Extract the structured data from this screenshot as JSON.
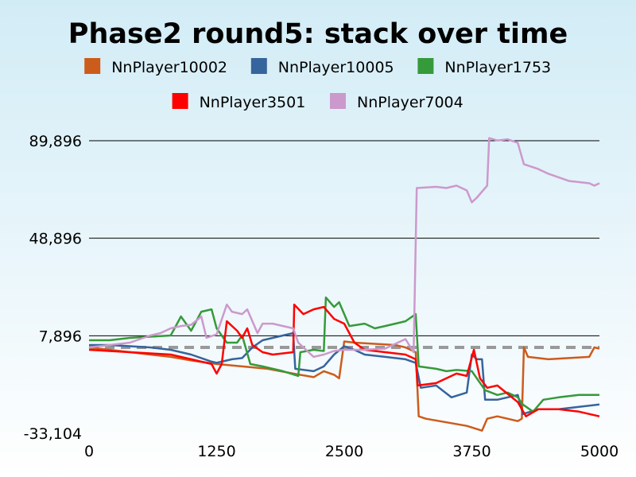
{
  "chart_data": {
    "type": "line",
    "title": "Phase2 round5: stack over time",
    "xlabel": "",
    "ylabel": "",
    "xlim": [
      0,
      5000
    ],
    "ylim": [
      -33104,
      89896
    ],
    "x_ticks": [
      0,
      1250,
      2500,
      3750,
      5000
    ],
    "x_tick_labels": [
      "0",
      "1250",
      "2500",
      "3750",
      "5000"
    ],
    "y_ticks": [
      -33104,
      7896,
      48896,
      89896
    ],
    "y_tick_labels": [
      "-33,104",
      "7,896",
      "48,896",
      "89,896"
    ],
    "grid": "horizontal",
    "legend_position": "top",
    "reference_line": {
      "y": 3000,
      "style": "dashed",
      "color": "#999999"
    },
    "series": [
      {
        "name": "NnPlayer10002",
        "color": "#cc5c1c",
        "points": [
          [
            0,
            3000
          ],
          [
            200,
            2000
          ],
          [
            400,
            1000
          ],
          [
            600,
            0
          ],
          [
            800,
            -1000
          ],
          [
            1000,
            -2500
          ],
          [
            1250,
            -4000
          ],
          [
            1500,
            -5000
          ],
          [
            1750,
            -6000
          ],
          [
            2000,
            -8000
          ],
          [
            2200,
            -9500
          ],
          [
            2300,
            -7000
          ],
          [
            2400,
            -8500
          ],
          [
            2450,
            -10000
          ],
          [
            2500,
            5500
          ],
          [
            2600,
            5000
          ],
          [
            2800,
            4500
          ],
          [
            3000,
            4000
          ],
          [
            3100,
            3000
          ],
          [
            3200,
            1000
          ],
          [
            3230,
            -26000
          ],
          [
            3300,
            -27000
          ],
          [
            3500,
            -28500
          ],
          [
            3700,
            -30000
          ],
          [
            3850,
            -32000
          ],
          [
            3900,
            -27000
          ],
          [
            4000,
            -26000
          ],
          [
            4200,
            -28000
          ],
          [
            4240,
            -27000
          ],
          [
            4260,
            3000
          ],
          [
            4300,
            -1000
          ],
          [
            4500,
            -2000
          ],
          [
            4700,
            -1500
          ],
          [
            4900,
            -1000
          ],
          [
            4950,
            3000
          ],
          [
            5000,
            2500
          ]
        ]
      },
      {
        "name": "NnPlayer10005",
        "color": "#36649c",
        "points": [
          [
            0,
            4000
          ],
          [
            200,
            4000
          ],
          [
            400,
            3500
          ],
          [
            600,
            3000
          ],
          [
            800,
            2000
          ],
          [
            1000,
            0
          ],
          [
            1200,
            -3000
          ],
          [
            1250,
            -3500
          ],
          [
            1400,
            -2000
          ],
          [
            1500,
            -1500
          ],
          [
            1600,
            3000
          ],
          [
            1700,
            6000
          ],
          [
            1800,
            7000
          ],
          [
            2000,
            9000
          ],
          [
            2020,
            -6000
          ],
          [
            2200,
            -7000
          ],
          [
            2300,
            -5000
          ],
          [
            2400,
            0
          ],
          [
            2500,
            3500
          ],
          [
            2600,
            2000
          ],
          [
            2700,
            0
          ],
          [
            2900,
            -1000
          ],
          [
            3100,
            -2000
          ],
          [
            3200,
            -3500
          ],
          [
            3250,
            -14000
          ],
          [
            3400,
            -13000
          ],
          [
            3550,
            -18000
          ],
          [
            3700,
            -16000
          ],
          [
            3750,
            0
          ],
          [
            3800,
            -2000
          ],
          [
            3850,
            -2000
          ],
          [
            3880,
            -19000
          ],
          [
            4000,
            -19000
          ],
          [
            4200,
            -17000
          ],
          [
            4250,
            -25000
          ],
          [
            4400,
            -23000
          ],
          [
            4600,
            -23000
          ],
          [
            4800,
            -22000
          ],
          [
            5000,
            -21000
          ]
        ]
      },
      {
        "name": "NnPlayer1753",
        "color": "#359a3a",
        "points": [
          [
            0,
            6000
          ],
          [
            200,
            6000
          ],
          [
            400,
            7000
          ],
          [
            600,
            7500
          ],
          [
            800,
            8000
          ],
          [
            900,
            16000
          ],
          [
            1000,
            10000
          ],
          [
            1100,
            18000
          ],
          [
            1200,
            19000
          ],
          [
            1250,
            11000
          ],
          [
            1350,
            5000
          ],
          [
            1450,
            5000
          ],
          [
            1500,
            8000
          ],
          [
            1580,
            -4000
          ],
          [
            1700,
            -5000
          ],
          [
            1900,
            -7000
          ],
          [
            2050,
            -9000
          ],
          [
            2070,
            1000
          ],
          [
            2200,
            2000
          ],
          [
            2300,
            1500
          ],
          [
            2320,
            24000
          ],
          [
            2400,
            20000
          ],
          [
            2450,
            22000
          ],
          [
            2500,
            17000
          ],
          [
            2550,
            12000
          ],
          [
            2700,
            13000
          ],
          [
            2800,
            11000
          ],
          [
            2900,
            12000
          ],
          [
            3000,
            13000
          ],
          [
            3100,
            14000
          ],
          [
            3200,
            17000
          ],
          [
            3230,
            -5000
          ],
          [
            3400,
            -6000
          ],
          [
            3500,
            -7000
          ],
          [
            3600,
            -6500
          ],
          [
            3750,
            -7000
          ],
          [
            3880,
            -15000
          ],
          [
            4000,
            -17000
          ],
          [
            4100,
            -16000
          ],
          [
            4200,
            -18000
          ],
          [
            4250,
            -21000
          ],
          [
            4350,
            -24000
          ],
          [
            4450,
            -19000
          ],
          [
            4600,
            -18000
          ],
          [
            4800,
            -17000
          ],
          [
            5000,
            -17000
          ]
        ]
      },
      {
        "name": "NnPlayer3501",
        "color": "#ff0000",
        "points": [
          [
            0,
            2000
          ],
          [
            200,
            1500
          ],
          [
            400,
            1000
          ],
          [
            600,
            500
          ],
          [
            800,
            0
          ],
          [
            1000,
            -2000
          ],
          [
            1200,
            -4000
          ],
          [
            1250,
            -8000
          ],
          [
            1300,
            -4000
          ],
          [
            1350,
            14000
          ],
          [
            1450,
            10000
          ],
          [
            1500,
            7000
          ],
          [
            1550,
            11000
          ],
          [
            1600,
            4000
          ],
          [
            1700,
            1000
          ],
          [
            1800,
            0
          ],
          [
            2000,
            1000
          ],
          [
            2010,
            21000
          ],
          [
            2100,
            17000
          ],
          [
            2200,
            19000
          ],
          [
            2300,
            20000
          ],
          [
            2400,
            15000
          ],
          [
            2500,
            13000
          ],
          [
            2600,
            5000
          ],
          [
            2700,
            2000
          ],
          [
            2900,
            1000
          ],
          [
            3100,
            0
          ],
          [
            3200,
            -2000
          ],
          [
            3220,
            -13000
          ],
          [
            3400,
            -12000
          ],
          [
            3500,
            -10000
          ],
          [
            3600,
            -8000
          ],
          [
            3700,
            -9000
          ],
          [
            3770,
            2000
          ],
          [
            3830,
            -10000
          ],
          [
            3900,
            -14000
          ],
          [
            4000,
            -13000
          ],
          [
            4200,
            -20000
          ],
          [
            4280,
            -26000
          ],
          [
            4400,
            -23000
          ],
          [
            4600,
            -23000
          ],
          [
            4800,
            -24000
          ],
          [
            5000,
            -26000
          ]
        ]
      },
      {
        "name": "NnPlayer7004",
        "color": "#cc99cc",
        "points": [
          [
            0,
            3000
          ],
          [
            200,
            4000
          ],
          [
            400,
            5000
          ],
          [
            600,
            8000
          ],
          [
            700,
            9000
          ],
          [
            800,
            11000
          ],
          [
            900,
            12000
          ],
          [
            1000,
            12500
          ],
          [
            1100,
            16000
          ],
          [
            1150,
            7000
          ],
          [
            1250,
            8500
          ],
          [
            1350,
            21000
          ],
          [
            1400,
            18000
          ],
          [
            1500,
            17000
          ],
          [
            1550,
            19000
          ],
          [
            1650,
            9000
          ],
          [
            1700,
            13000
          ],
          [
            1800,
            13000
          ],
          [
            1900,
            12000
          ],
          [
            2000,
            11000
          ],
          [
            2050,
            5000
          ],
          [
            2200,
            -1000
          ],
          [
            2300,
            0
          ],
          [
            2400,
            1500
          ],
          [
            2500,
            2000
          ],
          [
            2700,
            2000
          ],
          [
            2900,
            2500
          ],
          [
            3000,
            4500
          ],
          [
            3100,
            6500
          ],
          [
            3180,
            1000
          ],
          [
            3210,
            70000
          ],
          [
            3400,
            70500
          ],
          [
            3500,
            70000
          ],
          [
            3600,
            71000
          ],
          [
            3700,
            69000
          ],
          [
            3750,
            64000
          ],
          [
            3800,
            66000
          ],
          [
            3900,
            71000
          ],
          [
            3920,
            91000
          ],
          [
            4000,
            90000
          ],
          [
            4100,
            90500
          ],
          [
            4200,
            89000
          ],
          [
            4260,
            80000
          ],
          [
            4400,
            78000
          ],
          [
            4500,
            76000
          ],
          [
            4700,
            73000
          ],
          [
            4900,
            72000
          ],
          [
            4950,
            71000
          ],
          [
            5000,
            72000
          ]
        ]
      }
    ]
  }
}
